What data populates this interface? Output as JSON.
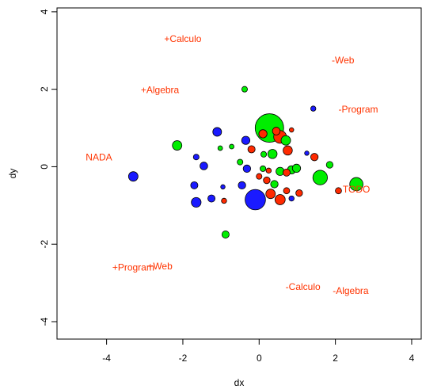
{
  "chart_data": {
    "type": "scatter",
    "title": "",
    "xlabel": "dx",
    "ylabel": "dy",
    "xlim": [
      -5.3,
      4.25
    ],
    "ylim": [
      -4.45,
      4.1
    ],
    "xticks": [
      -4,
      -2,
      0,
      2,
      4
    ],
    "yticks": [
      -4,
      -2,
      0,
      2,
      4
    ],
    "xtick_labels": [
      "-4",
      "-2",
      "0",
      "2",
      "4"
    ],
    "ytick_labels": [
      "-4",
      "-2",
      "0",
      "2",
      "4"
    ],
    "grid": false,
    "colors": {
      "blue": "#1a1aff",
      "green": "#00ee00",
      "red": "#ff2a00",
      "text": "#ff3300"
    },
    "annotations": [
      {
        "text": "+Calculo",
        "x": -2.0,
        "y": 3.3
      },
      {
        "text": "-Web",
        "x": 2.2,
        "y": 2.75
      },
      {
        "text": "+Algebra",
        "x": -2.6,
        "y": 1.98
      },
      {
        "text": "-Program",
        "x": 2.6,
        "y": 1.48
      },
      {
        "text": "NADA",
        "x": -4.2,
        "y": 0.24
      },
      {
        "text": "TODO",
        "x": 2.55,
        "y": -0.58
      },
      {
        "text": "+Program",
        "x": -3.3,
        "y": -2.6
      },
      {
        "text": "+Web",
        "x": -2.6,
        "y": -2.57
      },
      {
        "text": "-Calculo",
        "x": 1.15,
        "y": -3.1
      },
      {
        "text": "-Algebra",
        "x": 2.4,
        "y": -3.2
      }
    ],
    "points": [
      {
        "x": 0.27,
        "y": 1.0,
        "size": 1.0,
        "color": "green"
      },
      {
        "x": -0.1,
        "y": -0.85,
        "size": 0.68,
        "color": "blue"
      },
      {
        "x": 2.55,
        "y": -0.45,
        "size": 0.4,
        "color": "green"
      },
      {
        "x": 1.6,
        "y": -0.28,
        "size": 0.45,
        "color": "green"
      },
      {
        "x": -3.3,
        "y": -0.25,
        "size": 0.25,
        "color": "blue"
      },
      {
        "x": -2.15,
        "y": 0.55,
        "size": 0.25,
        "color": "green"
      },
      {
        "x": -1.1,
        "y": 0.9,
        "size": 0.22,
        "color": "blue"
      },
      {
        "x": -0.35,
        "y": 0.68,
        "size": 0.2,
        "color": "blue"
      },
      {
        "x": 0.55,
        "y": 0.77,
        "size": 0.38,
        "color": "red"
      },
      {
        "x": 0.7,
        "y": 0.68,
        "size": 0.25,
        "color": "green"
      },
      {
        "x": 0.1,
        "y": 0.85,
        "size": 0.2,
        "color": "red"
      },
      {
        "x": 0.45,
        "y": 0.92,
        "size": 0.18,
        "color": "red"
      },
      {
        "x": 0.35,
        "y": 0.33,
        "size": 0.24,
        "color": "green"
      },
      {
        "x": 0.75,
        "y": 0.42,
        "size": 0.24,
        "color": "red"
      },
      {
        "x": -0.2,
        "y": 0.45,
        "size": 0.16,
        "color": "red"
      },
      {
        "x": 0.12,
        "y": 0.32,
        "size": 0.1,
        "color": "green"
      },
      {
        "x": -0.5,
        "y": 0.12,
        "size": 0.1,
        "color": "green"
      },
      {
        "x": -0.72,
        "y": 0.52,
        "size": 0.06,
        "color": "green"
      },
      {
        "x": -1.02,
        "y": 0.48,
        "size": 0.06,
        "color": "green"
      },
      {
        "x": -1.45,
        "y": 0.02,
        "size": 0.18,
        "color": "blue"
      },
      {
        "x": -1.65,
        "y": 0.25,
        "size": 0.1,
        "color": "blue"
      },
      {
        "x": -0.32,
        "y": -0.05,
        "size": 0.17,
        "color": "blue"
      },
      {
        "x": 0.1,
        "y": -0.05,
        "size": 0.1,
        "color": "green"
      },
      {
        "x": 0.25,
        "y": -0.1,
        "size": 0.08,
        "color": "red"
      },
      {
        "x": 0.55,
        "y": -0.12,
        "size": 0.2,
        "color": "green"
      },
      {
        "x": 0.72,
        "y": -0.15,
        "size": 0.16,
        "color": "red"
      },
      {
        "x": 0.85,
        "y": -0.08,
        "size": 0.2,
        "color": "green"
      },
      {
        "x": 0.98,
        "y": -0.04,
        "size": 0.2,
        "color": "green"
      },
      {
        "x": 1.45,
        "y": 0.25,
        "size": 0.17,
        "color": "red"
      },
      {
        "x": 1.85,
        "y": 0.05,
        "size": 0.14,
        "color": "green"
      },
      {
        "x": 0.0,
        "y": -0.25,
        "size": 0.1,
        "color": "red"
      },
      {
        "x": 0.2,
        "y": -0.35,
        "size": 0.14,
        "color": "red"
      },
      {
        "x": 0.4,
        "y": -0.45,
        "size": 0.17,
        "color": "green"
      },
      {
        "x": 0.3,
        "y": -0.7,
        "size": 0.25,
        "color": "red"
      },
      {
        "x": 0.55,
        "y": -0.85,
        "size": 0.28,
        "color": "red"
      },
      {
        "x": 0.72,
        "y": -0.62,
        "size": 0.12,
        "color": "red"
      },
      {
        "x": 1.05,
        "y": -0.68,
        "size": 0.14,
        "color": "red"
      },
      {
        "x": -0.45,
        "y": -0.48,
        "size": 0.17,
        "color": "blue"
      },
      {
        "x": -1.7,
        "y": -0.48,
        "size": 0.16,
        "color": "blue"
      },
      {
        "x": -1.65,
        "y": -0.92,
        "size": 0.26,
        "color": "blue"
      },
      {
        "x": -1.25,
        "y": -0.82,
        "size": 0.16,
        "color": "blue"
      },
      {
        "x": -0.92,
        "y": -0.88,
        "size": 0.08,
        "color": "red"
      },
      {
        "x": 0.85,
        "y": -0.82,
        "size": 0.08,
        "color": "blue"
      },
      {
        "x": -0.88,
        "y": -1.75,
        "size": 0.16,
        "color": "green"
      },
      {
        "x": -0.38,
        "y": 2.0,
        "size": 0.1,
        "color": "green"
      },
      {
        "x": 1.42,
        "y": 1.5,
        "size": 0.08,
        "color": "blue"
      },
      {
        "x": 2.08,
        "y": -0.62,
        "size": 0.12,
        "color": "red"
      },
      {
        "x": -0.95,
        "y": -0.52,
        "size": 0.05,
        "color": "blue"
      },
      {
        "x": 0.85,
        "y": 0.95,
        "size": 0.05,
        "color": "red"
      },
      {
        "x": 1.25,
        "y": 0.35,
        "size": 0.05,
        "color": "blue"
      }
    ]
  }
}
